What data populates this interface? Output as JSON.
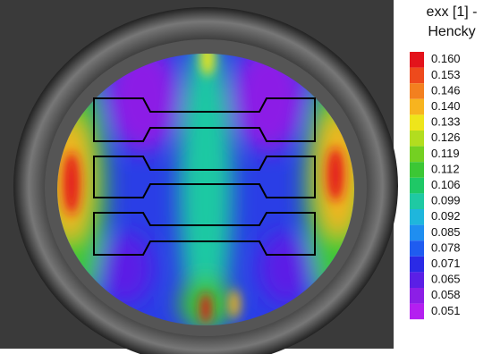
{
  "legend": {
    "title": [
      "exx [1] -",
      "Hencky"
    ],
    "items": [
      {
        "label": "0.160",
        "color": "#e3131b"
      },
      {
        "label": "0.153",
        "color": "#ee4a1c"
      },
      {
        "label": "0.146",
        "color": "#f3801f"
      },
      {
        "label": "0.140",
        "color": "#f7b41f"
      },
      {
        "label": "0.133",
        "color": "#eee51b"
      },
      {
        "label": "0.126",
        "color": "#b2dd1f"
      },
      {
        "label": "0.119",
        "color": "#74d022"
      },
      {
        "label": "0.112",
        "color": "#3cc735"
      },
      {
        "label": "0.106",
        "color": "#1fc866"
      },
      {
        "label": "0.099",
        "color": "#1fc9a3"
      },
      {
        "label": "0.092",
        "color": "#1fb6dc"
      },
      {
        "label": "0.085",
        "color": "#1f8ef0"
      },
      {
        "label": "0.078",
        "color": "#1f5cf0"
      },
      {
        "label": "0.071",
        "color": "#2a2ae6"
      },
      {
        "label": "0.065",
        "color": "#5b1fe6"
      },
      {
        "label": "0.058",
        "color": "#8c1fe6"
      },
      {
        "label": "0.051",
        "color": "#b41ff0"
      }
    ]
  }
}
